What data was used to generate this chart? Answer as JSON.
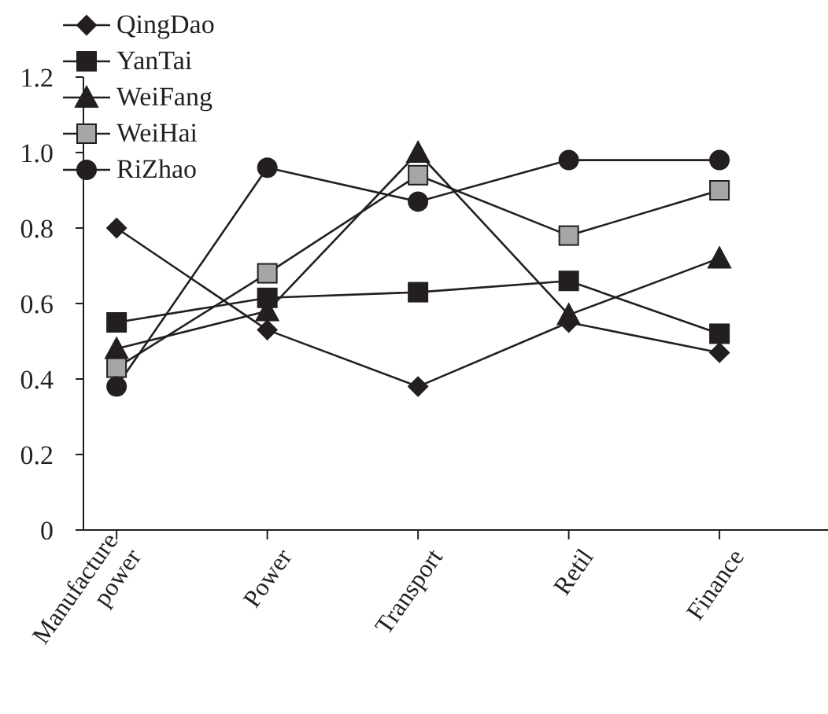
{
  "chart_data": {
    "type": "line",
    "categories": [
      "Manufacture power",
      "Power",
      "Transport",
      "Retil",
      "Finance"
    ],
    "series": [
      {
        "name": "QingDao",
        "color": "#231f20",
        "marker": "diamond",
        "values": [
          0.8,
          0.53,
          0.38,
          0.55,
          0.47
        ]
      },
      {
        "name": "YanTai",
        "color": "#231f20",
        "marker": "square",
        "values": [
          0.55,
          0.615,
          0.63,
          0.66,
          0.52
        ]
      },
      {
        "name": "WeiFang",
        "color": "#231f20",
        "marker": "triangle",
        "values": [
          0.48,
          0.58,
          1.0,
          0.57,
          0.72
        ]
      },
      {
        "name": "WeiHai",
        "color": "#a6a6a6",
        "marker": "square",
        "values": [
          0.43,
          0.68,
          0.94,
          0.78,
          0.9
        ]
      },
      {
        "name": "RiZhao",
        "color": "#231f20",
        "marker": "circle",
        "values": [
          0.38,
          0.96,
          0.87,
          0.98,
          0.98
        ]
      }
    ],
    "ylim": [
      0,
      1.2
    ],
    "yticks": [
      0,
      0.2,
      0.4,
      0.6,
      0.8,
      {
        "value": 1,
        "label": "1.0"
      },
      1.2
    ],
    "grid": false,
    "legend": "top left",
    "line_style": "solid"
  }
}
